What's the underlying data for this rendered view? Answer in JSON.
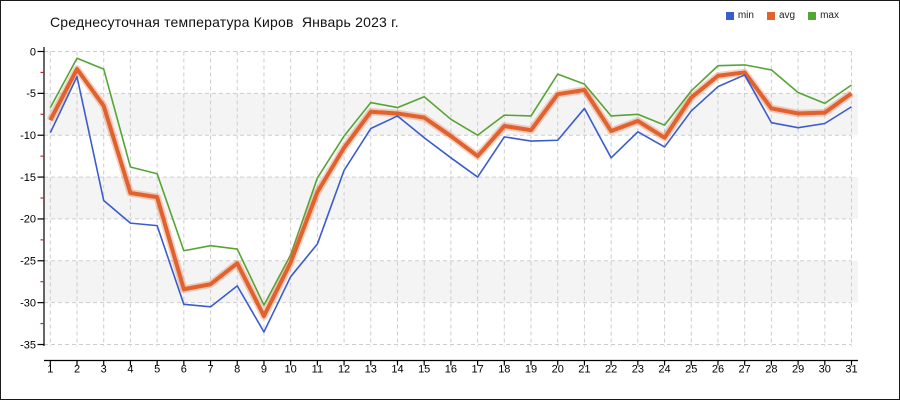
{
  "chart": {
    "border_color": "#1a1a1a",
    "background_color": "#ffffff"
  },
  "chart_data": {
    "type": "line",
    "title": "Среднесуточная температура Киров  Январь 2023 г.",
    "xlabel": "",
    "ylabel": "",
    "x": [
      1,
      2,
      3,
      4,
      5,
      6,
      7,
      8,
      9,
      10,
      11,
      12,
      13,
      14,
      15,
      16,
      17,
      18,
      19,
      20,
      21,
      22,
      23,
      24,
      25,
      26,
      27,
      28,
      29,
      30,
      31
    ],
    "ylim": [
      -35,
      0
    ],
    "yticks": [
      0,
      -5,
      -10,
      -15,
      -20,
      -25,
      -30,
      -35
    ],
    "grid": true,
    "grid_style": "dashed",
    "grid_color": "#cdcdcd",
    "plot_band_color": "#f4f4f4",
    "axis_color": "#000000",
    "minor_tick_color": "#cc2222",
    "legend_position": "top-right",
    "series": [
      {
        "name": "min",
        "color": "#3a5ccd",
        "thickness": "thin",
        "values": [
          -9.7,
          -3.0,
          -17.8,
          -20.5,
          -20.8,
          -30.2,
          -30.5,
          -28.0,
          -33.5,
          -26.9,
          -23.0,
          -14.2,
          -9.2,
          -7.7,
          -10.3,
          -12.7,
          -15.0,
          -10.2,
          -10.7,
          -10.6,
          -6.8,
          -12.7,
          -9.6,
          -11.4,
          -7.1,
          -4.2,
          -2.8,
          -8.5,
          -9.1,
          -8.6,
          -6.6
        ]
      },
      {
        "name": "avg",
        "color": "#e0622e",
        "thickness": "thick",
        "values": [
          -8.2,
          -2.1,
          -6.5,
          -16.9,
          -17.4,
          -28.4,
          -27.8,
          -25.3,
          -31.6,
          -25.2,
          -16.8,
          -11.5,
          -7.2,
          -7.4,
          -7.9,
          -10.1,
          -12.5,
          -8.9,
          -9.4,
          -5.1,
          -4.6,
          -9.5,
          -8.3,
          -10.3,
          -5.5,
          -2.9,
          -2.5,
          -6.8,
          -7.4,
          -7.3,
          -5.0
        ]
      },
      {
        "name": "max",
        "color": "#55a535",
        "thickness": "thin",
        "values": [
          -6.7,
          -0.8,
          -2.1,
          -13.8,
          -14.6,
          -23.8,
          -23.2,
          -23.6,
          -30.3,
          -24.3,
          -15.1,
          -10.1,
          -6.1,
          -6.7,
          -5.4,
          -8.1,
          -10.0,
          -7.6,
          -7.7,
          -2.7,
          -3.9,
          -7.7,
          -7.5,
          -8.8,
          -4.7,
          -1.7,
          -1.6,
          -2.2,
          -4.9,
          -6.2,
          -4.0
        ]
      }
    ]
  }
}
